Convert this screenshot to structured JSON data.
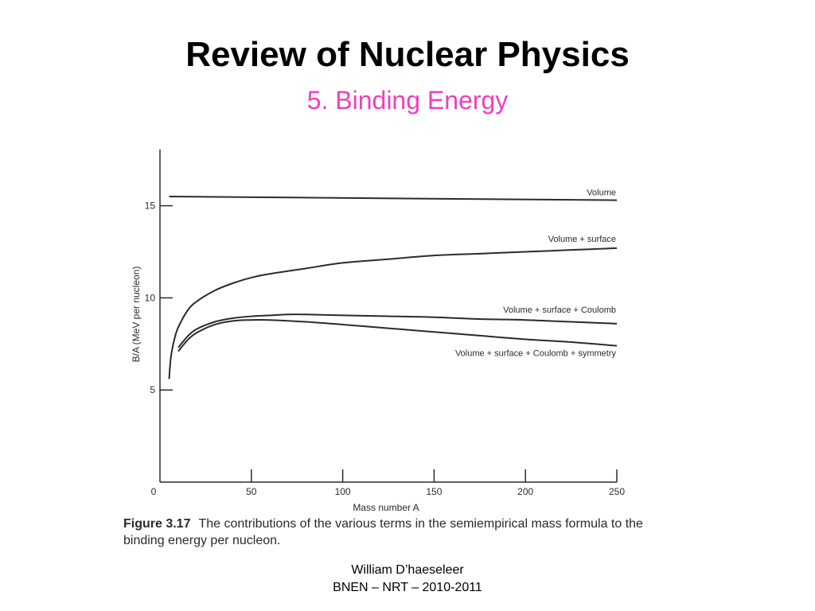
{
  "slide": {
    "title": "Review of Nuclear Physics",
    "subtitle": "5. Binding Energy",
    "subtitle_color": "#ee3fbe"
  },
  "caption": {
    "figure_label": "Figure 3.17",
    "text": "The contributions of the various terms in the semiempirical mass formula to the binding energy per nucleon."
  },
  "footer": {
    "author": "William D’haeseleer",
    "course": "BNEN – NRT – 2010-2011"
  },
  "chart_data": {
    "type": "line",
    "xlabel": "Mass number A",
    "ylabel": "B/A (MeV per nucleon)",
    "xlim": [
      0,
      250
    ],
    "ylim": [
      0,
      18
    ],
    "xticks": [
      0,
      50,
      100,
      150,
      200,
      250
    ],
    "yticks": [
      5,
      10,
      15
    ],
    "grid": false,
    "legend": "inline labels at right end of each curve",
    "series": [
      {
        "name": "Volume",
        "x": [
          5,
          250
        ],
        "y": [
          15.5,
          15.3
        ]
      },
      {
        "name": "Volume + surface",
        "x": [
          5,
          6,
          8,
          10,
          15,
          20,
          30,
          40,
          50,
          60,
          80,
          100,
          125,
          150,
          175,
          200,
          225,
          250
        ],
        "y": [
          5.6,
          6.8,
          7.8,
          8.4,
          9.3,
          9.8,
          10.4,
          10.8,
          11.1,
          11.3,
          11.6,
          11.9,
          12.1,
          12.3,
          12.4,
          12.5,
          12.6,
          12.7
        ]
      },
      {
        "name": "Volume + surface + Coulomb",
        "x": [
          10,
          15,
          20,
          30,
          40,
          50,
          60,
          70,
          80,
          100,
          125,
          150,
          175,
          200,
          225,
          250
        ],
        "y": [
          7.3,
          7.9,
          8.3,
          8.7,
          8.9,
          9.0,
          9.05,
          9.1,
          9.1,
          9.05,
          9.0,
          8.95,
          8.85,
          8.8,
          8.7,
          8.6
        ]
      },
      {
        "name": "Volume + surface + Coulomb + symmetry",
        "x": [
          10,
          15,
          20,
          30,
          40,
          50,
          60,
          80,
          100,
          125,
          150,
          175,
          200,
          225,
          250
        ],
        "y": [
          7.1,
          7.7,
          8.1,
          8.55,
          8.75,
          8.8,
          8.8,
          8.7,
          8.55,
          8.35,
          8.15,
          7.95,
          7.75,
          7.6,
          7.4
        ]
      }
    ]
  }
}
